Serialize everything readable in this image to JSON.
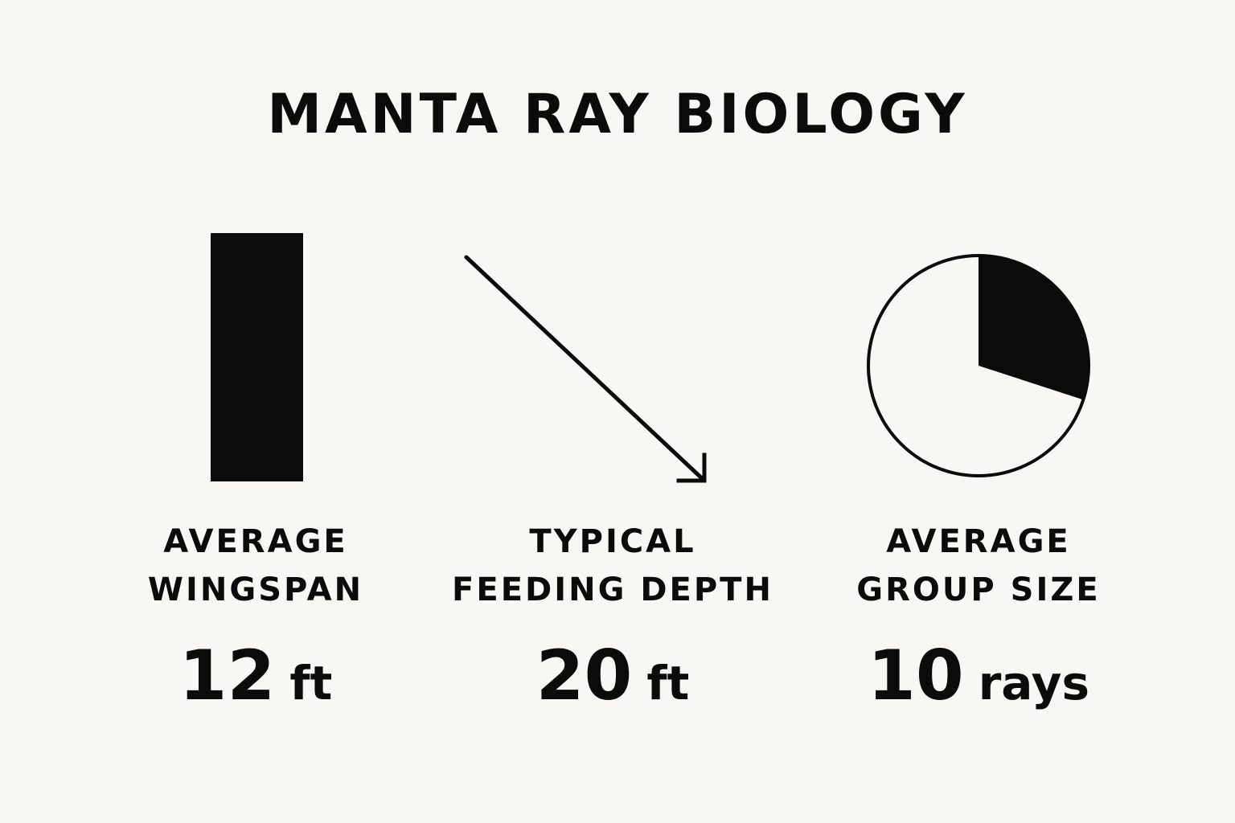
{
  "theme": {
    "background": "#f9f7f3",
    "ink": "#0b0b0b"
  },
  "title": "MANTA RAY BIOLOGY",
  "stats": [
    {
      "icon": "bar-icon",
      "label_lines": [
        "AVERAGE",
        "WINGSPAN"
      ],
      "value": "12",
      "unit": "ft"
    },
    {
      "icon": "diagonal-down-arrow-icon",
      "label_lines": [
        "TYPICAL",
        "FEEDING DEPTH"
      ],
      "value": "20",
      "unit": "ft"
    },
    {
      "icon": "pie-icon",
      "label_lines": [
        "AVERAGE",
        "GROUP SIZE"
      ],
      "value": "10",
      "unit": "rays",
      "pie_filled_fraction": 0.3
    }
  ]
}
